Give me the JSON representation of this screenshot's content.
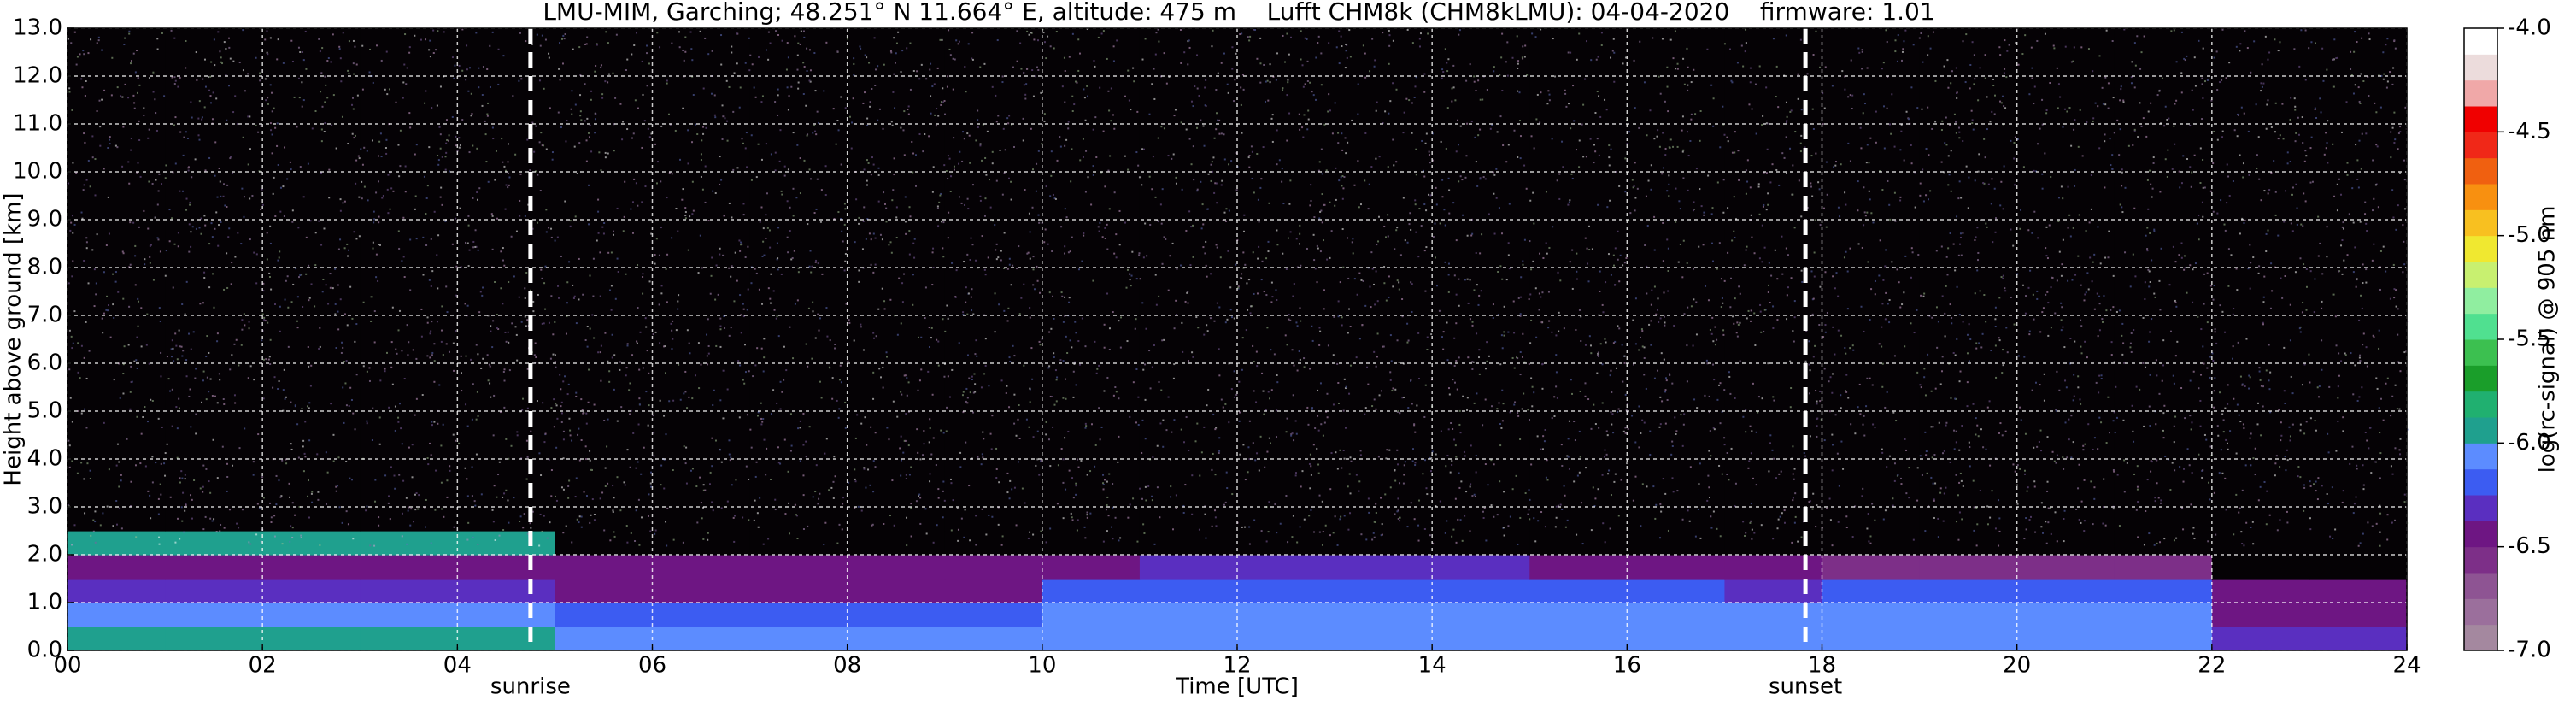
{
  "chart_data": {
    "type": "heatmap",
    "title": "LMU-MIM, Garching; 48.251° N 11.664° E, altitude: 475 m    Lufft CHM8k (CHM8kLMU): 04-04-2020    firmware: 1.01",
    "xlabel": "Time [UTC]",
    "ylabel": "Height above ground [km]",
    "xlim": [
      0,
      24
    ],
    "ylim": [
      0,
      13
    ],
    "xticks": [
      {
        "value": 0,
        "label": "00"
      },
      {
        "value": 2,
        "label": "02"
      },
      {
        "value": 4,
        "label": "04"
      },
      {
        "value": 6,
        "label": "06"
      },
      {
        "value": 8,
        "label": "08"
      },
      {
        "value": 10,
        "label": "10"
      },
      {
        "value": 12,
        "label": "12"
      },
      {
        "value": 14,
        "label": "14"
      },
      {
        "value": 16,
        "label": "16"
      },
      {
        "value": 18,
        "label": "18"
      },
      {
        "value": 20,
        "label": "20"
      },
      {
        "value": 22,
        "label": "22"
      },
      {
        "value": 24,
        "label": "24"
      }
    ],
    "yticks": [
      {
        "value": 0,
        "label": "0.0"
      },
      {
        "value": 1,
        "label": "1.0"
      },
      {
        "value": 2,
        "label": "2.0"
      },
      {
        "value": 3,
        "label": "3.0"
      },
      {
        "value": 4,
        "label": "4.0"
      },
      {
        "value": 5,
        "label": "5.0"
      },
      {
        "value": 6,
        "label": "6.0"
      },
      {
        "value": 7,
        "label": "7.0"
      },
      {
        "value": 8,
        "label": "8.0"
      },
      {
        "value": 9,
        "label": "9.0"
      },
      {
        "value": 10,
        "label": "10.0"
      },
      {
        "value": 11,
        "label": "11.0"
      },
      {
        "value": 12,
        "label": "12.0"
      },
      {
        "value": 13,
        "label": "13.0"
      }
    ],
    "grid": true,
    "x_edges": [
      0,
      1,
      2,
      3,
      4,
      5,
      6,
      7,
      8,
      9,
      10,
      11,
      12,
      13,
      14,
      15,
      16,
      17,
      18,
      19,
      20,
      21,
      22,
      23,
      24
    ],
    "y_edges": [
      0,
      0.5,
      1,
      1.5,
      2,
      2.5,
      3,
      4,
      5,
      6,
      7,
      8,
      9,
      10,
      11,
      12,
      13
    ],
    "z": [
      [
        -6.0,
        -6.0,
        -6.0,
        -6.0,
        -6.0,
        -6.1,
        -6.1,
        -6.1,
        -6.1,
        -6.1,
        -6.05,
        -6.05,
        -6.05,
        -6.05,
        -6.05,
        -6.05,
        -6.05,
        -6.05,
        -6.05,
        -6.05,
        -6.05,
        -6.05,
        -6.35,
        -6.35
      ],
      [
        -6.1,
        -6.1,
        -6.1,
        -6.1,
        -6.1,
        -6.15,
        -6.15,
        -6.15,
        -6.15,
        -6.15,
        -6.1,
        -6.1,
        -6.1,
        -6.1,
        -6.1,
        -6.1,
        -6.1,
        -6.1,
        -6.05,
        -6.05,
        -6.05,
        -6.05,
        -6.4,
        -6.4
      ],
      [
        -6.35,
        -6.35,
        -6.35,
        -6.35,
        -6.35,
        -6.4,
        -6.4,
        -6.4,
        -6.4,
        -6.4,
        -6.2,
        -6.2,
        -6.2,
        -6.2,
        -6.2,
        -6.2,
        -6.2,
        -6.35,
        -6.15,
        -6.15,
        -6.15,
        -6.15,
        -6.45,
        -6.45
      ],
      [
        -6.4,
        -6.4,
        -6.4,
        -6.4,
        -6.4,
        -6.5,
        -6.5,
        -6.5,
        -6.5,
        -6.5,
        -6.45,
        -6.3,
        -6.3,
        -6.3,
        -6.3,
        -6.5,
        -6.5,
        -6.5,
        -6.6,
        -6.6,
        -6.6,
        -6.6,
        -7.2,
        -7.2
      ],
      [
        -5.9,
        -5.9,
        -5.9,
        -5.9,
        -5.9,
        -7.2,
        -7.2,
        -7.2,
        -7.2,
        -7.2,
        -7.2,
        -7.2,
        -7.2,
        -7.2,
        -7.2,
        -7.2,
        -7.2,
        -7.2,
        -7.2,
        -7.2,
        -7.2,
        -7.2,
        -7.2,
        -7.2
      ],
      [
        -7.2,
        -7.2,
        -7.2,
        -7.2,
        -7.2,
        -7.2,
        -7.2,
        -7.2,
        -7.2,
        -7.2,
        -7.2,
        -7.2,
        -7.2,
        -7.2,
        -7.2,
        -7.2,
        -7.2,
        -7.2,
        -7.2,
        -7.2,
        -7.2,
        -7.2,
        -7.2,
        -7.2
      ],
      [
        -7.2,
        -7.2,
        -7.2,
        -7.2,
        -7.2,
        -7.2,
        -7.2,
        -7.2,
        -7.2,
        -7.2,
        -7.2,
        -7.2,
        -7.2,
        -7.2,
        -7.2,
        -7.2,
        -7.2,
        -7.2,
        -7.2,
        -7.2,
        -7.2,
        -7.2,
        -7.2,
        -7.2
      ],
      [
        -7.2,
        -7.2,
        -7.2,
        -7.2,
        -7.2,
        -7.2,
        -7.2,
        -7.2,
        -7.2,
        -7.2,
        -7.2,
        -7.2,
        -7.2,
        -7.2,
        -7.2,
        -7.2,
        -7.2,
        -7.2,
        -7.2,
        -7.2,
        -7.2,
        -7.2,
        -7.2,
        -7.2
      ],
      [
        -7.2,
        -7.2,
        -7.2,
        -7.2,
        -7.2,
        -7.2,
        -7.2,
        -7.2,
        -7.2,
        -7.2,
        -7.2,
        -7.2,
        -7.2,
        -7.2,
        -7.2,
        -7.2,
        -7.2,
        -7.2,
        -7.2,
        -7.2,
        -7.2,
        -7.2,
        -7.2,
        -7.2
      ],
      [
        -7.2,
        -7.2,
        -7.2,
        -7.2,
        -7.2,
        -7.2,
        -7.2,
        -7.2,
        -7.2,
        -7.2,
        -7.2,
        -7.2,
        -7.2,
        -7.2,
        -7.2,
        -7.2,
        -7.2,
        -7.2,
        -7.2,
        -7.2,
        -7.2,
        -7.2,
        -7.2,
        -7.2
      ],
      [
        -7.2,
        -7.2,
        -7.2,
        -7.2,
        -7.2,
        -7.2,
        -7.2,
        -7.2,
        -7.2,
        -7.2,
        -7.2,
        -7.2,
        -7.2,
        -7.2,
        -7.2,
        -7.2,
        -7.2,
        -7.2,
        -7.2,
        -7.2,
        -7.2,
        -7.2,
        -7.2,
        -7.2
      ],
      [
        -7.2,
        -7.2,
        -7.2,
        -7.2,
        -7.2,
        -7.2,
        -7.2,
        -7.2,
        -7.2,
        -7.2,
        -7.2,
        -7.2,
        -7.2,
        -7.2,
        -7.2,
        -7.2,
        -7.2,
        -7.2,
        -7.2,
        -7.2,
        -7.2,
        -7.2,
        -7.2,
        -7.2
      ],
      [
        -7.2,
        -7.2,
        -7.2,
        -7.2,
        -7.2,
        -7.2,
        -7.2,
        -7.2,
        -7.2,
        -7.2,
        -7.2,
        -7.2,
        -7.2,
        -7.2,
        -7.2,
        -7.2,
        -7.2,
        -7.2,
        -7.2,
        -7.2,
        -7.2,
        -7.2,
        -7.2,
        -7.2
      ],
      [
        -7.2,
        -7.2,
        -7.2,
        -7.2,
        -7.2,
        -7.2,
        -7.2,
        -7.2,
        -7.2,
        -7.2,
        -7.2,
        -7.2,
        -7.2,
        -7.2,
        -7.2,
        -7.2,
        -7.2,
        -7.2,
        -7.2,
        -7.2,
        -7.2,
        -7.2,
        -7.2,
        -7.2
      ],
      [
        -7.2,
        -7.2,
        -7.2,
        -7.2,
        -7.2,
        -7.2,
        -7.2,
        -7.2,
        -7.2,
        -7.2,
        -7.2,
        -7.2,
        -7.2,
        -7.2,
        -7.2,
        -7.2,
        -7.2,
        -7.2,
        -7.2,
        -7.2,
        -7.2,
        -7.2,
        -7.2,
        -7.2
      ],
      [
        -7.2,
        -7.2,
        -7.2,
        -7.2,
        -7.2,
        -7.2,
        -7.2,
        -7.2,
        -7.2,
        -7.2,
        -7.2,
        -7.2,
        -7.2,
        -7.2,
        -7.2,
        -7.2,
        -7.2,
        -7.2,
        -7.2,
        -7.2,
        -7.2,
        -7.2,
        -7.2,
        -7.2
      ]
    ],
    "under_color": "#050205",
    "vlines": [
      {
        "x": 4.75,
        "label": "sunrise"
      },
      {
        "x": 17.83,
        "label": "sunset"
      }
    ],
    "colorbar": {
      "label": "log(rc-signal) @ 905 nm",
      "lim": [
        -7,
        -4
      ],
      "ticks": [
        {
          "value": -4,
          "label": "-4.0"
        },
        {
          "value": -4.5,
          "label": "-4.5"
        },
        {
          "value": -5,
          "label": "-5.0"
        },
        {
          "value": -5.5,
          "label": "-5.5"
        },
        {
          "value": -6,
          "label": "-6.0"
        },
        {
          "value": -6.5,
          "label": "-6.5"
        },
        {
          "value": -7,
          "label": "-7.0"
        }
      ],
      "colors": [
        "#a4889f",
        "#9b6f9c",
        "#8e5493",
        "#7d2f88",
        "#6e1683",
        "#5a2fc0",
        "#3c5cf2",
        "#5c8cff",
        "#1fa08e",
        "#20b070",
        "#1a9e2a",
        "#3cc050",
        "#50e090",
        "#90eea0",
        "#c8f070",
        "#f0e830",
        "#f8c020",
        "#f89010",
        "#f06010",
        "#f02818",
        "#f00000",
        "#f0a8a8",
        "#ecdcdc",
        "#ffffff"
      ]
    }
  }
}
